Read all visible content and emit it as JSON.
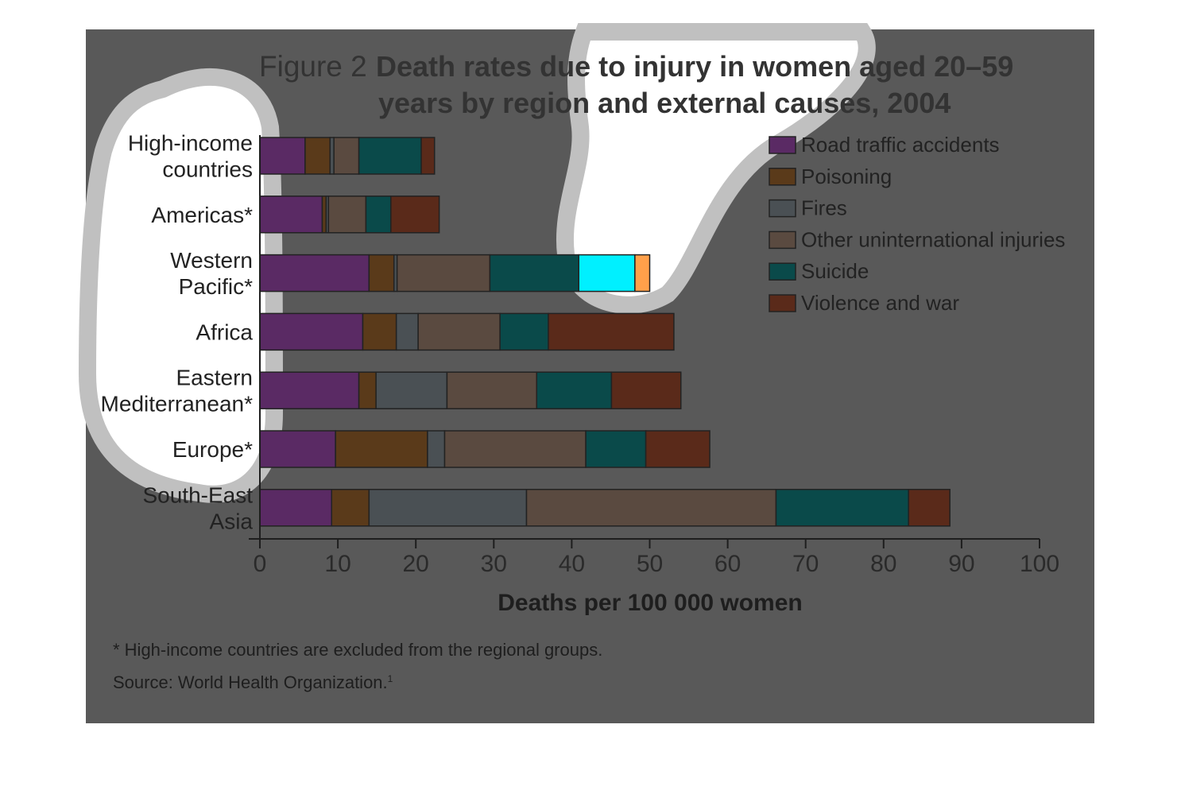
{
  "chart_data": {
    "type": "bar",
    "orientation": "horizontal",
    "stacked": true,
    "title_prefix": "Figure 2",
    "title_line1": "Death rates due to injury in women aged 20–59",
    "title_line2": "years by region and external causes, 2004",
    "xlabel": "Deaths per 100 000 women",
    "ylabel": "",
    "xlim": [
      0,
      100
    ],
    "x_ticks": [
      "0",
      "10",
      "20",
      "30",
      "40",
      "50",
      "60",
      "70",
      "80",
      "90",
      "100"
    ],
    "grid": false,
    "legend_position": "top-right",
    "categories": [
      [
        "High-income",
        "countries"
      ],
      [
        "Americas*"
      ],
      [
        "Western",
        "Pacific*"
      ],
      [
        "Africa"
      ],
      [
        "Eastern",
        "Mediterranean*"
      ],
      [
        "Europe*"
      ],
      [
        "South-East",
        "Asia"
      ]
    ],
    "series": [
      {
        "name": "Road traffic accidents",
        "color": "#5a2a64",
        "values": [
          5.8,
          8.0,
          14.0,
          13.2,
          12.7,
          9.7,
          9.2
        ]
      },
      {
        "name": "Poisoning",
        "color": "#5a3a1a",
        "values": [
          3.2,
          0.5,
          3.2,
          4.3,
          2.2,
          11.8,
          4.8
        ]
      },
      {
        "name": "Fires",
        "color": "#4a5054",
        "values": [
          0.5,
          0.3,
          0.4,
          2.8,
          9.1,
          2.2,
          20.2
        ]
      },
      {
        "name": "Other uninternational injuries",
        "color": "#5a4a40",
        "values": [
          3.2,
          4.8,
          11.9,
          10.5,
          11.5,
          18.1,
          32.0
        ]
      },
      {
        "name": "Suicide",
        "color": "#0a4a4a",
        "values": [
          8.0,
          3.2,
          18.6,
          6.2,
          9.6,
          7.7,
          17.0
        ]
      },
      {
        "name": "Violence and war",
        "color": "#5a2a1a",
        "values": [
          1.7,
          6.2,
          1.9,
          16.1,
          8.9,
          8.2,
          5.3
        ]
      }
    ],
    "footnote": "* High-income countries are excluded from the regional groups.",
    "source": "Source: World Health Organization.",
    "source_superscript": "1"
  },
  "highlight_colors": {
    "panel": "#595959",
    "halo": "#c0c0c0",
    "suicide_highlight": "#00f0ff",
    "violence_highlight": "#ffa04a"
  }
}
